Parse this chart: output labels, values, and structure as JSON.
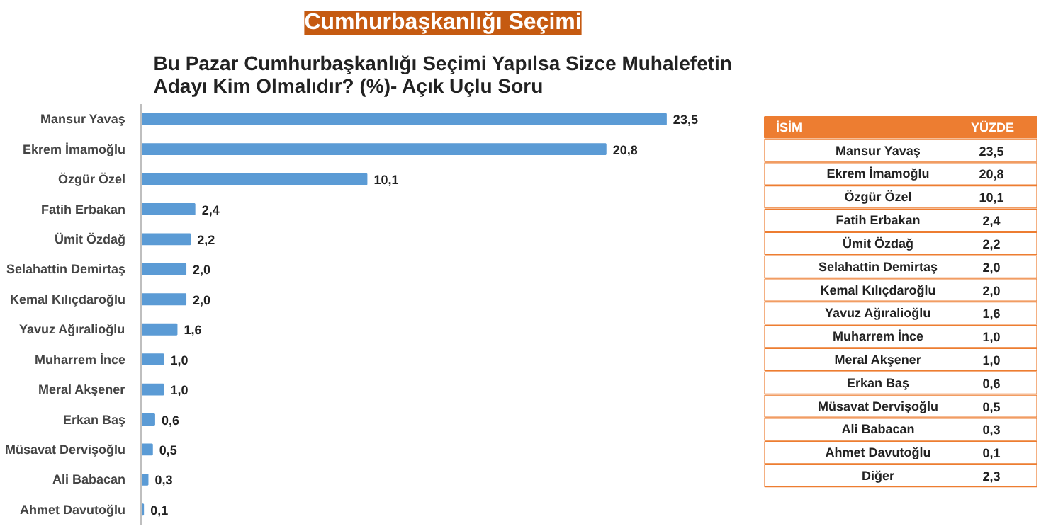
{
  "chart_data": [
    {
      "type": "bar",
      "orientation": "horizontal",
      "title": "Cumhurbaşkanlığı Seçimi",
      "subtitle": "Bu Pazar Cumhurbaşkanlığı Seçimi Yapılsa Sizce Muhalefetin Adayı Kim Olmalıdır? (%)- Açık Uçlu Soru",
      "categories": [
        "Mansur Yavaş",
        "Ekrem İmamoğlu",
        "Özgür Özel",
        "Fatih Erbakan",
        "Ümit Özdağ",
        "Selahattin Demirtaş",
        "Kemal Kılıçdaroğlu",
        "Yavuz Ağıralioğlu",
        "Muharrem İnce",
        "Meral Akşener",
        "Erkan Baş",
        "Müsavat Dervişoğlu",
        "Ali Babacan",
        "Ahmet Davutoğlu"
      ],
      "values": [
        23.5,
        20.8,
        10.1,
        2.4,
        2.2,
        2.0,
        2.0,
        1.6,
        1.0,
        1.0,
        0.6,
        0.5,
        0.3,
        0.1
      ],
      "value_labels": [
        "23,5",
        "20,8",
        "10,1",
        "2,4",
        "2,2",
        "2,0",
        "2,0",
        "1,6",
        "1,0",
        "1,0",
        "0,6",
        "0,5",
        "0,3",
        "0,1"
      ],
      "color": "#5b9bd5",
      "grid": false
    },
    {
      "type": "other",
      "annotations": [
        "İSİM",
        "YÜZDE"
      ],
      "categories": [
        "Mansur Yavaş",
        "Ekrem İmamoğlu",
        "Özgür Özel",
        "Fatih Erbakan",
        "Ümit Özdağ",
        "Selahattin Demirtaş",
        "Kemal Kılıçdaroğlu",
        "Yavuz Ağıralioğlu",
        "Muharrem İnce",
        "Meral Akşener",
        "Erkan Baş",
        "Müsavat Dervişoğlu",
        "Ali Babacan",
        "Ahmet Davutoğlu",
        "Diğer"
      ],
      "values": [
        23.5,
        20.8,
        10.1,
        2.4,
        2.2,
        2.0,
        2.0,
        1.6,
        1.0,
        1.0,
        0.6,
        0.5,
        0.3,
        0.1,
        2.3
      ],
      "value_labels": [
        "23,5",
        "20,8",
        "10,1",
        "2,4",
        "2,2",
        "2,0",
        "2,0",
        "1,6",
        "1,0",
        "1,0",
        "0,6",
        "0,5",
        "0,3",
        "0,1",
        "2,3"
      ],
      "color": "#ed7d31"
    }
  ]
}
